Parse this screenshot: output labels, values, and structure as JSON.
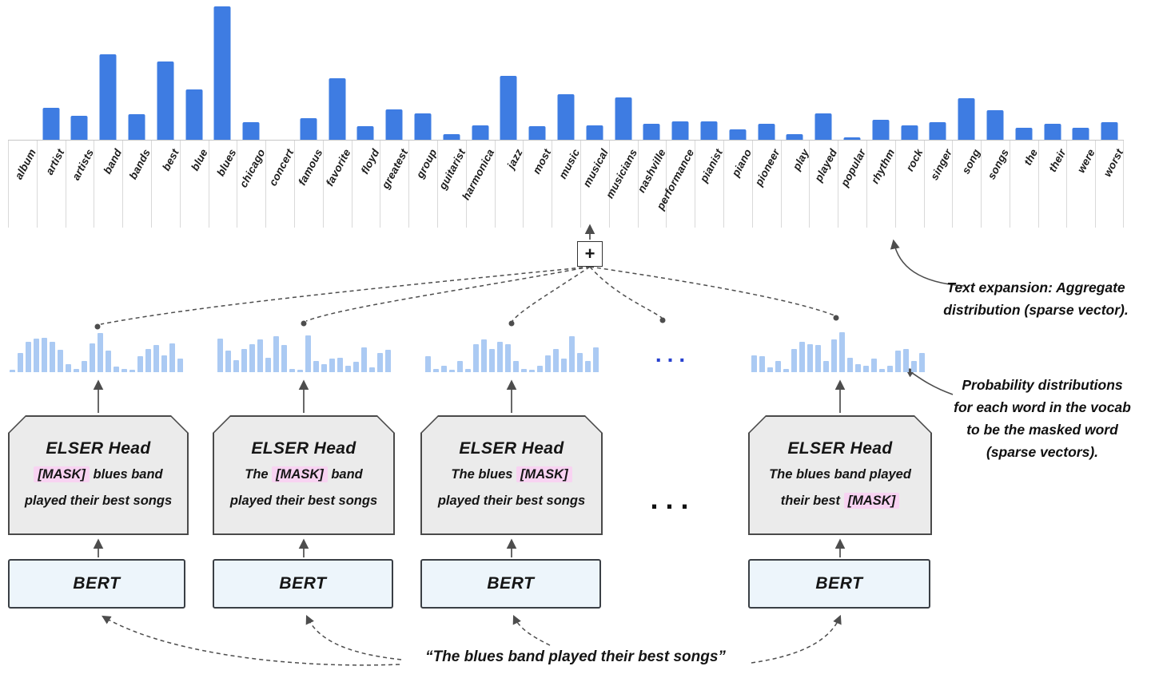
{
  "colors": {
    "bar_blue": "#3e7ce2",
    "mini_bar_blue": "#abcaf3",
    "line_gray": "#4d4d4d",
    "head_fill": "#ebebeb",
    "bert_fill": "#edf5fb",
    "mask_pink": "#f8d3f2",
    "dots_blue": "#2741cf"
  },
  "chart_data": [
    {
      "type": "bar",
      "title": "Aggregate distribution (sparse vector)",
      "categories": [
        "album",
        "artist",
        "artists",
        "band",
        "bands",
        "best",
        "blue",
        "blues",
        "chicago",
        "concert",
        "famous",
        "favorite",
        "floyd",
        "greatest",
        "group",
        "guitarist",
        "harmonica",
        "jazz",
        "most",
        "music",
        "musical",
        "musicians",
        "nashville",
        "performance",
        "pianist",
        "piano",
        "pioneer",
        "play",
        "played",
        "popular",
        "rhythm",
        "rock",
        "singer",
        "song",
        "songs",
        "the",
        "their",
        "were",
        "worst"
      ],
      "values": [
        0,
        24,
        18,
        64,
        19,
        59,
        38,
        100,
        13,
        0,
        16,
        46,
        10,
        23,
        20,
        4,
        11,
        48,
        10,
        34,
        11,
        32,
        12,
        14,
        14,
        8,
        12,
        4,
        20,
        2,
        15,
        11,
        13,
        31,
        22,
        9,
        12,
        9,
        13
      ],
      "ylim": [
        0,
        100
      ],
      "grid": false,
      "legend": "none",
      "xlabel": "",
      "ylabel": ""
    },
    {
      "type": "bar",
      "values": [
        4,
        35,
        55,
        60,
        62,
        55,
        40,
        15,
        6,
        20,
        52,
        70,
        38,
        10,
        6,
        4,
        28,
        42,
        48,
        30,
        52,
        24
      ]
    },
    {
      "type": "bar",
      "values": [
        60,
        38,
        22,
        42,
        50,
        58,
        26,
        64,
        48,
        6,
        4,
        66,
        20,
        15,
        24,
        26,
        12,
        18,
        45,
        8,
        35,
        40
      ]
    },
    {
      "type": "bar",
      "values": [
        28,
        6,
        12,
        4,
        20,
        6,
        50,
        58,
        42,
        55,
        50,
        20,
        6,
        4,
        12,
        30,
        42,
        24,
        65,
        35,
        20,
        45
      ]
    },
    {
      "type": "bar",
      "values": [
        30,
        28,
        8,
        20,
        6,
        42,
        55,
        50,
        48,
        20,
        58,
        72,
        26,
        15,
        12,
        24,
        6,
        12,
        38,
        42,
        20,
        35
      ]
    }
  ],
  "plus_label": "+",
  "heads": [
    {
      "title": "ELSER Head",
      "lines": [
        [
          {
            "text": "[MASK]",
            "mask": true
          },
          {
            "text": " blues band",
            "mask": false
          }
        ],
        [
          {
            "text": "played their best songs",
            "mask": false
          }
        ]
      ]
    },
    {
      "title": "ELSER Head",
      "lines": [
        [
          {
            "text": "The ",
            "mask": false
          },
          {
            "text": "[MASK]",
            "mask": true
          },
          {
            "text": " band",
            "mask": false
          }
        ],
        [
          {
            "text": "played their best songs",
            "mask": false
          }
        ]
      ]
    },
    {
      "title": "ELSER Head",
      "lines": [
        [
          {
            "text": "The blues ",
            "mask": false
          },
          {
            "text": "[MASK]",
            "mask": true
          }
        ],
        [
          {
            "text": "played their best songs",
            "mask": false
          }
        ]
      ]
    },
    {
      "title": "ELSER Head",
      "lines": [
        [
          {
            "text": "The blues band played",
            "mask": false
          }
        ],
        [
          {
            "text": "their best ",
            "mask": false
          },
          {
            "text": "[MASK]",
            "mask": true
          }
        ]
      ]
    }
  ],
  "bert_label": "BERT",
  "ellipsis_mini": "...",
  "ellipsis_head": "...",
  "annotations": {
    "aggregate_lines": [
      "Text expansion: Aggregate",
      "distribution (sparse vector)."
    ],
    "probability_lines": [
      "Probability distributions",
      "for each word in the vocab",
      "to be the masked word",
      "(sparse vectors)."
    ]
  },
  "quote": "“The blues band played their best songs”"
}
